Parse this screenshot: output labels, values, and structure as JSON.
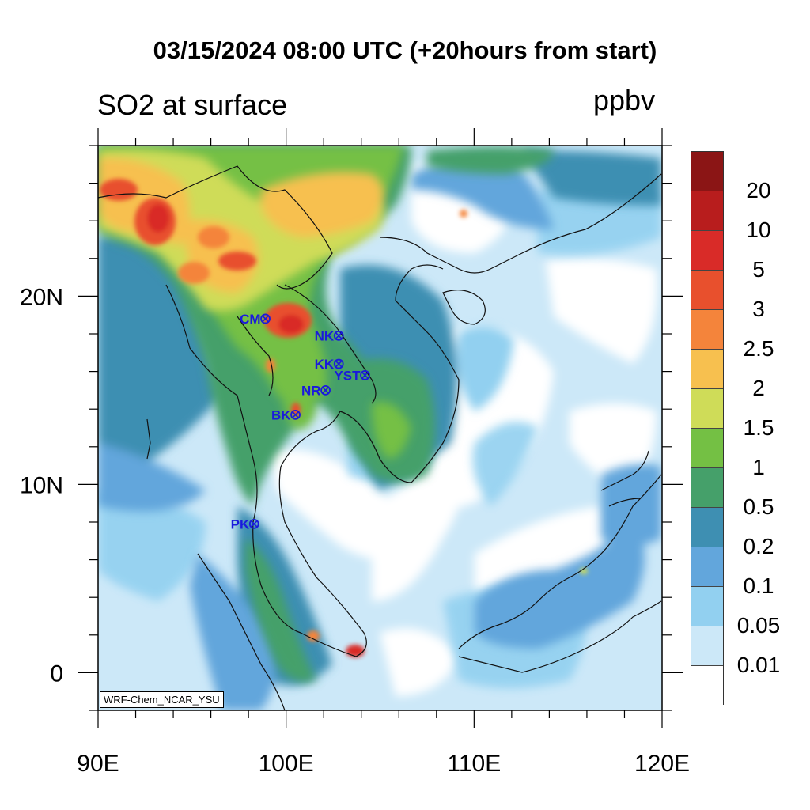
{
  "header": {
    "title": "03/15/2024 08:00 UTC (+20hours from start)",
    "subtitle": "SO2 at surface",
    "units": "ppbv"
  },
  "colorbar": {
    "levels": [
      {
        "label": "20",
        "color": "#8b1515"
      },
      {
        "label": "10",
        "color": "#b81d1d"
      },
      {
        "label": "5",
        "color": "#d92b28"
      },
      {
        "label": "3",
        "color": "#e8502d"
      },
      {
        "label": "2.5",
        "color": "#f4843b"
      },
      {
        "label": "2",
        "color": "#f7c04f"
      },
      {
        "label": "1.5",
        "color": "#cfdc58"
      },
      {
        "label": "1",
        "color": "#74c044"
      },
      {
        "label": "0.5",
        "color": "#45a06a"
      },
      {
        "label": "0.2",
        "color": "#3e8fb2"
      },
      {
        "label": "0.1",
        "color": "#62a6dc"
      },
      {
        "label": "0.05",
        "color": "#92d0f0"
      },
      {
        "label": "0.01",
        "color": "#cce8f8"
      },
      {
        "label": "",
        "color": "#ffffff"
      }
    ]
  },
  "axes": {
    "lon_labels": [
      "90E",
      "100E",
      "110E",
      "120E"
    ],
    "lat_labels": [
      "20N",
      "10N",
      "0"
    ],
    "lon_range": [
      90,
      120
    ],
    "lat_range": [
      -2,
      28
    ]
  },
  "stations": [
    {
      "label": "CM",
      "lon": 98.9,
      "lat": 18.8
    },
    {
      "label": "NK",
      "lon": 102.8,
      "lat": 17.9
    },
    {
      "label": "KK",
      "lon": 102.8,
      "lat": 16.4
    },
    {
      "label": "YST",
      "lon": 104.2,
      "lat": 15.8
    },
    {
      "label": "NR",
      "lon": 102.1,
      "lat": 15.0
    },
    {
      "label": "BK",
      "lon": 100.5,
      "lat": 13.7
    },
    {
      "label": "PK",
      "lon": 98.3,
      "lat": 7.9
    }
  ],
  "credit": "WRF-Chem_NCAR_YSU"
}
